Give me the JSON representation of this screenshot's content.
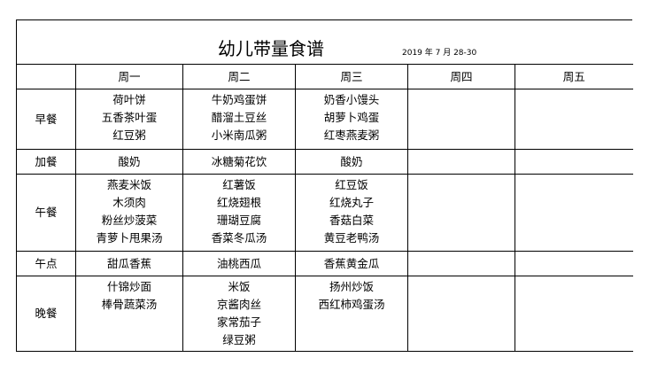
{
  "title": "幼儿带量食谱",
  "date": "2019 年 7 月 28-30",
  "days": [
    "周一",
    "周二",
    "周三",
    "周四",
    "周五"
  ],
  "meals": [
    {
      "name": "早餐",
      "items": [
        [
          "荷叶饼",
          "五香茶叶蛋",
          "红豆粥"
        ],
        [
          "牛奶鸡蛋饼",
          "醋溜土豆丝",
          "小米南瓜粥"
        ],
        [
          "奶香小馒头",
          "胡萝卜鸡蛋",
          "红枣燕麦粥"
        ],
        [],
        []
      ]
    },
    {
      "name": "加餐",
      "items": [
        [
          "酸奶"
        ],
        [
          "冰糖菊花饮"
        ],
        [
          "酸奶"
        ],
        [],
        []
      ]
    },
    {
      "name": "午餐",
      "items": [
        [
          "燕麦米饭",
          "木须肉",
          "粉丝炒菠菜",
          "青萝卜甩果汤"
        ],
        [
          "红薯饭",
          "红烧翅根",
          "珊瑚豆腐",
          "香菜冬瓜汤"
        ],
        [
          "红豆饭",
          "红烧丸子",
          "香菇白菜",
          "黄豆老鸭汤"
        ],
        [],
        []
      ]
    },
    {
      "name": "午点",
      "items": [
        [
          "甜瓜香蕉"
        ],
        [
          "油桃西瓜"
        ],
        [
          "香蕉黄金瓜"
        ],
        [],
        []
      ]
    },
    {
      "name": "晚餐",
      "items": [
        [
          "什锦炒面",
          "棒骨蔬菜汤"
        ],
        [
          "米饭",
          "京酱肉丝",
          "家常茄子",
          "绿豆粥"
        ],
        [
          "扬州炒饭",
          "西红柿鸡蛋汤"
        ],
        [],
        []
      ]
    }
  ]
}
